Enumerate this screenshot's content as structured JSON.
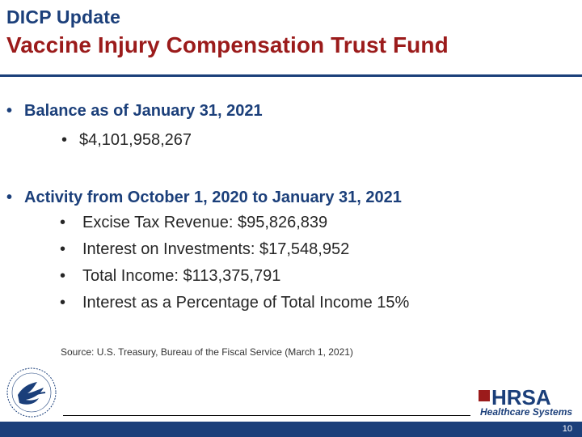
{
  "header": {
    "eyebrow": "DICP Update",
    "title": "Vaccine Injury Compensation Trust Fund"
  },
  "section1": {
    "heading": "Balance as of January 31, 2021",
    "items": [
      "$4,101,958,267"
    ]
  },
  "section2": {
    "heading": "Activity from October 1, 2020 to January 31, 2021",
    "items": [
      "Excise Tax Revenue: $95,826,839",
      "Interest on Investments: $17,548,952",
      "Total Income: $113,375,791",
      "Interest as a Percentage of Total Income 15%"
    ]
  },
  "source": "Source:  U.S. Treasury, Bureau of the Fiscal Service (March 1, 2021)",
  "footer": {
    "page_number": "10",
    "logo_word": "HRSA",
    "logo_sub": "Healthcare Systems"
  },
  "colors": {
    "navy": "#1b3f7a",
    "maroon": "#9b1b1b"
  }
}
